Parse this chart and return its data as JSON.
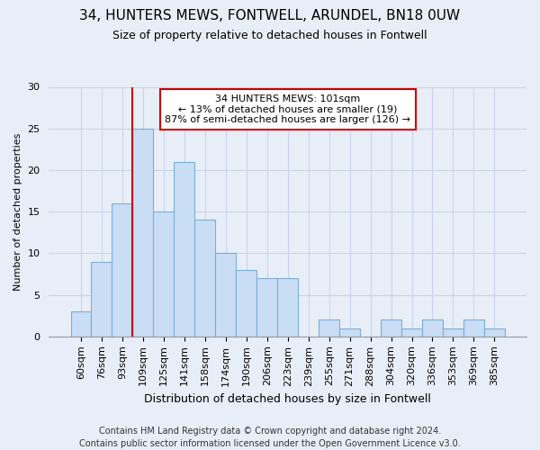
{
  "title1": "34, HUNTERS MEWS, FONTWELL, ARUNDEL, BN18 0UW",
  "title2": "Size of property relative to detached houses in Fontwell",
  "xlabel": "Distribution of detached houses by size in Fontwell",
  "ylabel": "Number of detached properties",
  "categories": [
    "60sqm",
    "76sqm",
    "93sqm",
    "109sqm",
    "125sqm",
    "141sqm",
    "158sqm",
    "174sqm",
    "190sqm",
    "206sqm",
    "223sqm",
    "239sqm",
    "255sqm",
    "271sqm",
    "288sqm",
    "304sqm",
    "320sqm",
    "336sqm",
    "353sqm",
    "369sqm",
    "385sqm"
  ],
  "values": [
    3,
    9,
    16,
    25,
    15,
    21,
    14,
    10,
    8,
    7,
    7,
    0,
    2,
    1,
    0,
    2,
    1,
    2,
    1,
    2,
    1
  ],
  "bar_color": "#c9ddf5",
  "bar_edge_color": "#7bafd4",
  "grid_color": "#c8d4e8",
  "vline_color": "#cc0000",
  "vline_pos": 3,
  "annotation_lines": [
    "34 HUNTERS MEWS: 101sqm",
    "← 13% of detached houses are smaller (19)",
    "87% of semi-detached houses are larger (126) →"
  ],
  "annotation_box_color": "#ffffff",
  "annotation_box_edge_color": "#cc0000",
  "footer": "Contains HM Land Registry data © Crown copyright and database right 2024.\nContains public sector information licensed under the Open Government Licence v3.0.",
  "ylim": [
    0,
    30
  ],
  "yticks": [
    0,
    5,
    10,
    15,
    20,
    25,
    30
  ],
  "bg_color": "#e8eef8",
  "plot_bg_color": "#e8eef8",
  "title1_fontsize": 11,
  "title2_fontsize": 9,
  "xlabel_fontsize": 9,
  "ylabel_fontsize": 8,
  "tick_fontsize": 8,
  "annot_fontsize": 8,
  "footer_fontsize": 7
}
